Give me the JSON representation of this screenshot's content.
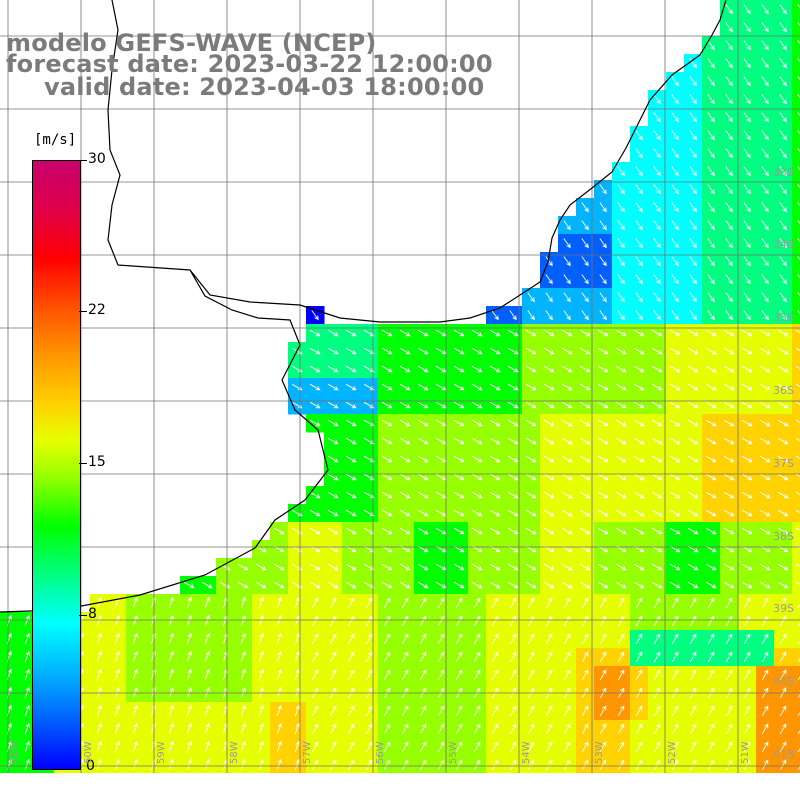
{
  "title": {
    "model": "modelo GEFS-WAVE (NCEP)",
    "forecast": "forecast date: 2023-03-22 12:00:00",
    "valid": "valid date: 2023-04-03 18:00:00"
  },
  "colorbar": {
    "unit": "[m/s]",
    "ticks": [
      "30",
      "22",
      "15",
      "8",
      "0"
    ],
    "colors": [
      "#0000ff",
      "#0060ff",
      "#00b4ff",
      "#00ffff",
      "#00ff80",
      "#00ff00",
      "#96ff00",
      "#e6ff00",
      "#ffd200",
      "#ff9600",
      "#ff5000",
      "#ff0000",
      "#e0004a",
      "#c8006e"
    ]
  },
  "grid": {
    "lat_labels": [
      "33S",
      "34S",
      "35S",
      "36S",
      "37S",
      "38S",
      "39S",
      "40S",
      "41S"
    ],
    "lon_labels": [
      "61W",
      "60W",
      "59W",
      "58W",
      "57W",
      "56W",
      "55W",
      "54W",
      "53W",
      "52W",
      "51W"
    ]
  },
  "colors": {
    "land": "#ffffff",
    "coast": "#000000",
    "grid_line": "#707070",
    "arrow": "#ffffff",
    "title_text": "#7b7b7b"
  }
}
